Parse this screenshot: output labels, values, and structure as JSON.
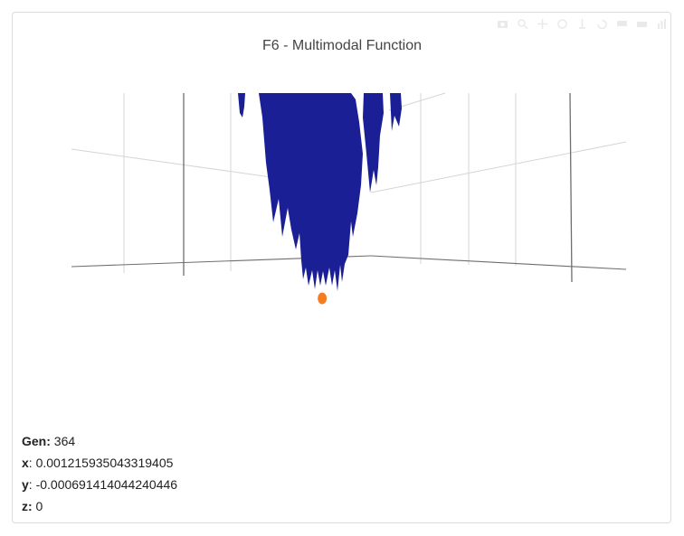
{
  "chart_data": {
    "type": "surface3d",
    "title": "F6 - Multimodal Function",
    "surface_color": "#1a1f96",
    "best_point": {
      "x": 0.001215935043319405,
      "y": -0.000691414044240446,
      "z": 0
    },
    "best_point_color": "#f57c1f",
    "grid": true
  },
  "info": {
    "gen_label": "Gen:",
    "gen_value": "364",
    "x_label": "x",
    "x_value": ": 0.001215935043319405",
    "y_label": "y",
    "y_value": ": -0.000691414044240446",
    "z_label": "z:",
    "z_value": " 0"
  },
  "modebar": [
    "camera-icon",
    "zoom-icon",
    "pan-icon",
    "orbit-icon",
    "turntable-icon",
    "reset-icon",
    "hover-icon",
    "spike-icon",
    "plotly-logo-icon"
  ]
}
